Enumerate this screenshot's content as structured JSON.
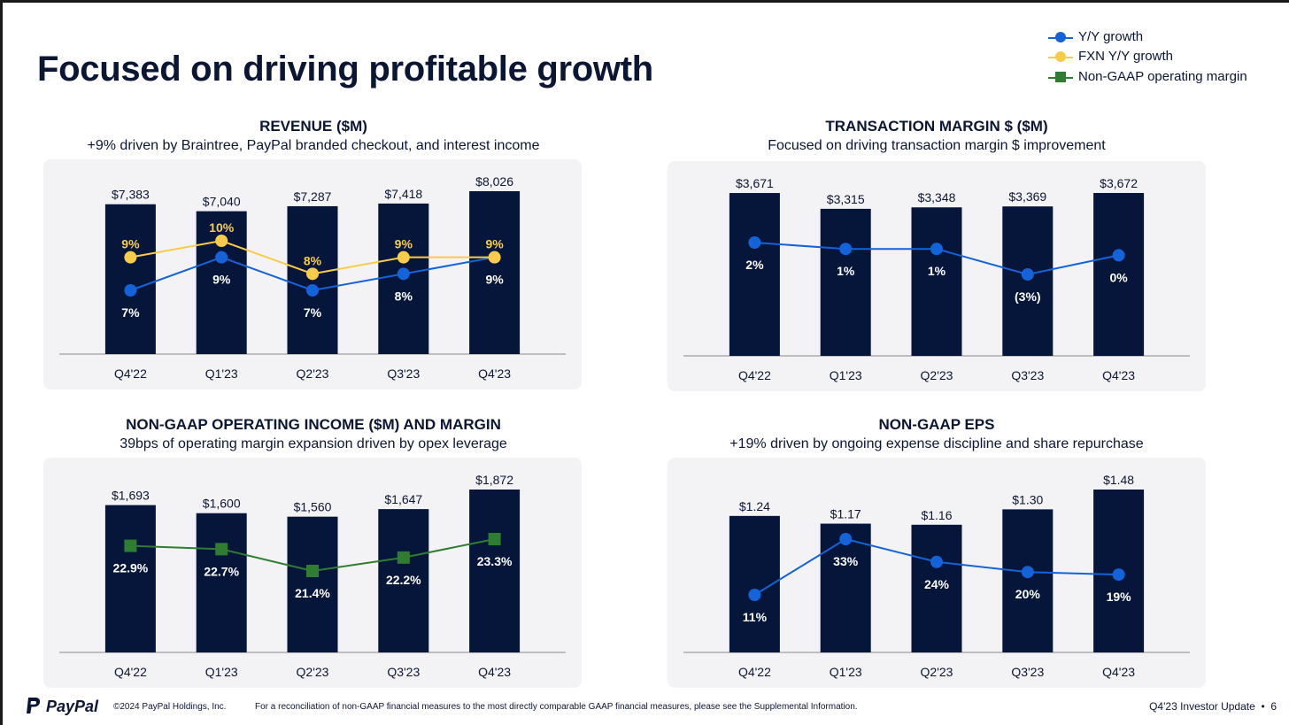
{
  "slide": {
    "title": "Focused on driving profitable growth",
    "legend": [
      {
        "label": "Y/Y growth",
        "color": "#1463d8",
        "marker": "circle"
      },
      {
        "label": "FXN Y/Y growth",
        "color": "#f8cc48",
        "marker": "circle"
      },
      {
        "label": "Non-GAAP operating margin",
        "color": "#2e7d32",
        "marker": "square"
      }
    ]
  },
  "colors": {
    "bar": "#06163a",
    "panel_bg": "#f3f3f5",
    "axis": "#8a8a8a",
    "text": "#0a1633"
  },
  "chart_data": [
    {
      "type": "bar",
      "title": "REVENUE ($M)",
      "subtitle": "+9% driven by Braintree, PayPal branded checkout, and interest income",
      "categories": [
        "Q4'22",
        "Q1'23",
        "Q2'23",
        "Q3'23",
        "Q4'23"
      ],
      "values": [
        7383,
        7040,
        7287,
        7418,
        8026
      ],
      "value_labels": [
        "$7,383",
        "$7,040",
        "$7,287",
        "$7,418",
        "$8,026"
      ],
      "lines": [
        {
          "name": "Y/Y growth",
          "color": "#1463d8",
          "marker": "circle",
          "values": [
            7,
            9,
            7,
            8,
            9
          ],
          "labels": [
            "7%",
            "9%",
            "7%",
            "8%",
            "9%"
          ],
          "label_color": "#ffffff",
          "label_position": "below"
        },
        {
          "name": "FXN Y/Y growth",
          "color": "#f8cc48",
          "marker": "circle",
          "values": [
            9,
            10,
            8,
            9,
            9
          ],
          "labels": [
            "9%",
            "10%",
            "8%",
            "9%",
            "9%"
          ],
          "label_color": "#f8cc48",
          "label_position": "above"
        }
      ]
    },
    {
      "type": "bar",
      "title": "TRANSACTION MARGIN $ ($M)",
      "subtitle": "Focused on driving transaction margin $ improvement",
      "categories": [
        "Q4'22",
        "Q1'23",
        "Q2'23",
        "Q3'23",
        "Q4'23"
      ],
      "values": [
        3671,
        3315,
        3348,
        3369,
        3672
      ],
      "value_labels": [
        "$3,671",
        "$3,315",
        "$3,348",
        "$3,369",
        "$3,672"
      ],
      "lines": [
        {
          "name": "Y/Y growth",
          "color": "#1463d8",
          "marker": "circle",
          "values": [
            2,
            1,
            1,
            -3,
            0
          ],
          "labels": [
            "2%",
            "1%",
            "1%",
            "(3%)",
            "0%"
          ],
          "label_color": "#ffffff",
          "label_position": "below"
        }
      ]
    },
    {
      "type": "bar",
      "title": "NON-GAAP OPERATING INCOME ($M) AND MARGIN",
      "subtitle": "39bps of operating margin expansion driven by opex leverage",
      "categories": [
        "Q4'22",
        "Q1'23",
        "Q2'23",
        "Q3'23",
        "Q4'23"
      ],
      "values": [
        1693,
        1600,
        1560,
        1647,
        1872
      ],
      "value_labels": [
        "$1,693",
        "$1,600",
        "$1,560",
        "$1,647",
        "$1,872"
      ],
      "lines": [
        {
          "name": "Non-GAAP operating margin",
          "color": "#2e7d32",
          "marker": "square",
          "values": [
            22.9,
            22.7,
            21.4,
            22.2,
            23.3
          ],
          "labels": [
            "22.9%",
            "22.7%",
            "21.4%",
            "22.2%",
            "23.3%"
          ],
          "label_color": "#ffffff",
          "label_position": "below"
        }
      ]
    },
    {
      "type": "bar",
      "title": "NON-GAAP EPS",
      "subtitle": "+19% driven by ongoing expense discipline and share repurchase",
      "categories": [
        "Q4'22",
        "Q1'23",
        "Q2'23",
        "Q3'23",
        "Q4'23"
      ],
      "values": [
        1.24,
        1.17,
        1.16,
        1.3,
        1.48
      ],
      "value_labels": [
        "$1.24",
        "$1.17",
        "$1.16",
        "$1.30",
        "$1.48"
      ],
      "lines": [
        {
          "name": "Y/Y growth",
          "color": "#1463d8",
          "marker": "circle",
          "values": [
            11,
            33,
            24,
            20,
            19
          ],
          "labels": [
            "11%",
            "33%",
            "24%",
            "20%",
            "19%"
          ],
          "label_color": "#ffffff",
          "label_position": "below"
        }
      ]
    }
  ],
  "footer": {
    "logo_text": "PayPal",
    "copyright": "©2024 PayPal Holdings, Inc.",
    "note": "For a reconciliation of non-GAAP financial measures to the most directly comparable GAAP financial measures, please see the Supplemental Information.",
    "page_label": "Q4'23 Investor Update  •  6"
  }
}
